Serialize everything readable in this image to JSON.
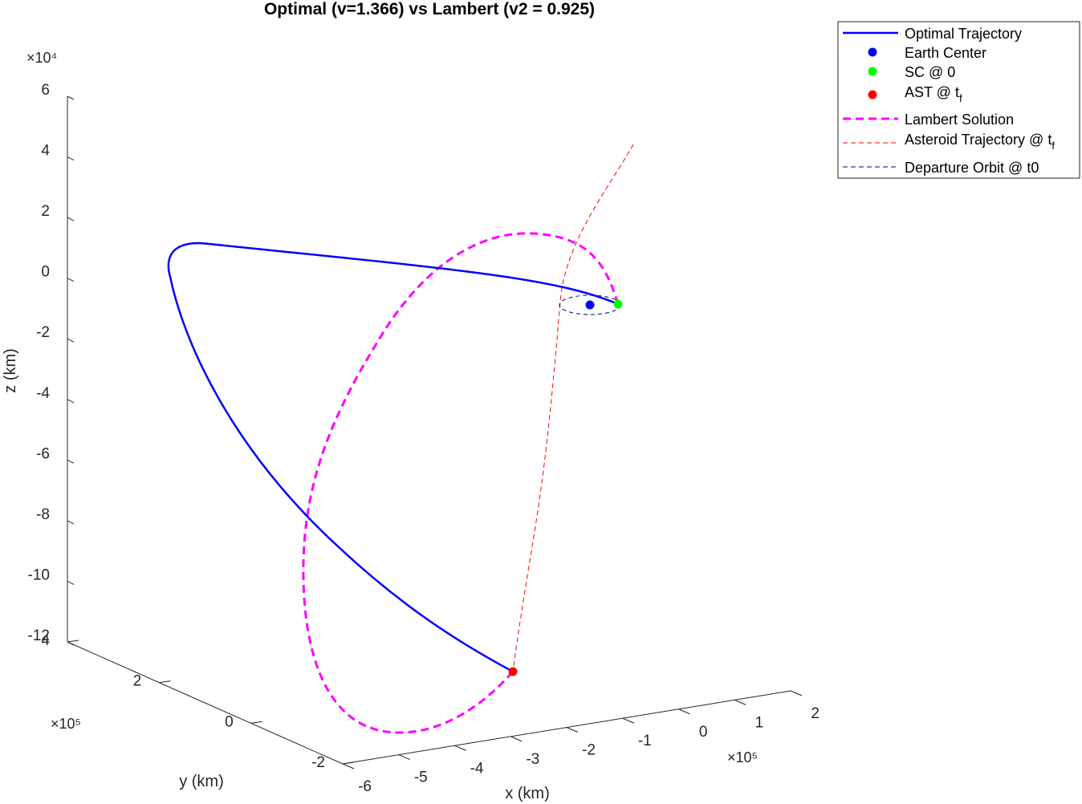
{
  "chart_data": {
    "type": "line3d",
    "title": "Optimal (v=1.366) vs Lambert (v2 = 0.925)",
    "xlabel": "x (km)",
    "ylabel": "y (km)",
    "zlabel": "z (km)",
    "x_scale_label": "×10⁵",
    "y_scale_label": "×10⁵",
    "z_scale_label": "×10⁴",
    "x_ticks": [
      "-6",
      "-5",
      "-4",
      "-3",
      "-2",
      "-1",
      "0",
      "1",
      "2"
    ],
    "y_ticks": [
      "-2",
      "0",
      "2",
      "4"
    ],
    "z_ticks": [
      "6",
      "4",
      "2",
      "0",
      "-2",
      "-4",
      "-6",
      "-8",
      "-10",
      "-12"
    ],
    "xlim": [
      -6,
      2
    ],
    "ylim": [
      -2,
      4
    ],
    "zlim": [
      -12,
      6
    ],
    "grid": false,
    "legend_position": "top-right",
    "legend": [
      {
        "label": "Optimal Trajectory",
        "style": "solid",
        "color": "#0000ff"
      },
      {
        "label": "Earth Center",
        "style": "marker",
        "color": "#0000ff"
      },
      {
        "label": "SC @ 0",
        "style": "marker",
        "color": "#00ff00"
      },
      {
        "label": "AST @ t",
        "sub": "f",
        "style": "marker",
        "color": "#ff0000"
      },
      {
        "label": "Lambert Solution",
        "style": "dashed-thick",
        "color": "#ff00ff"
      },
      {
        "label": "Asteroid Trajectory @ t",
        "sub": "f",
        "style": "dashed-thin",
        "color": "#ff0000"
      },
      {
        "label": "Departure Orbit @ t0",
        "style": "dashed-thin",
        "color": "#00008b"
      }
    ],
    "series": [
      {
        "name": "Optimal Trajectory",
        "kind": "curve",
        "color": "#0000ff"
      },
      {
        "name": "Lambert Solution",
        "kind": "curve",
        "color": "#ff00ff"
      },
      {
        "name": "Asteroid Trajectory @ tf",
        "kind": "curve",
        "color": "#ff0000"
      },
      {
        "name": "Departure Orbit @ t0",
        "kind": "ellipse",
        "color": "#00008b"
      },
      {
        "name": "Earth Center",
        "kind": "point",
        "color": "#0000ff"
      },
      {
        "name": "SC @ 0",
        "kind": "point",
        "color": "#00ff00"
      },
      {
        "name": "AST @ tf",
        "kind": "point",
        "color": "#ff0000"
      }
    ]
  }
}
